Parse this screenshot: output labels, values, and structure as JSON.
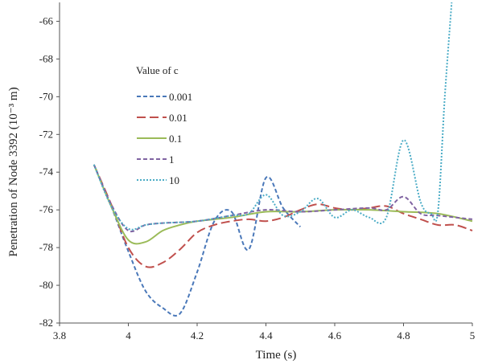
{
  "chart_data": {
    "type": "line",
    "xlabel": "Time (s)",
    "ylabel": "Penetration of Node 3392 (10⁻³ m)",
    "xlim": [
      3.8,
      5.0
    ],
    "ylim": [
      -82,
      -65
    ],
    "x_ticks": [
      "3.8",
      "4",
      "4.2",
      "4.4",
      "4.6",
      "4.8",
      "5"
    ],
    "y_ticks": [
      "-66",
      "-68",
      "-70",
      "-72",
      "-74",
      "-76",
      "-78",
      "-80",
      "-82"
    ],
    "grid": false,
    "legend_title": "Value of c",
    "legend_position": "upper-left",
    "series": [
      {
        "name": "0.001",
        "color": "#4a78b9",
        "dash": "dashed",
        "x": [
          3.9,
          3.95,
          4.0,
          4.05,
          4.1,
          4.15,
          4.2,
          4.25,
          4.3,
          4.35,
          4.4,
          4.45,
          4.5
        ],
        "y": [
          -73.6,
          -75.8,
          -78.2,
          -80.3,
          -81.2,
          -81.5,
          -79.3,
          -76.6,
          -76.1,
          -78.1,
          -74.3,
          -75.9,
          -76.9
        ]
      },
      {
        "name": "0.01",
        "color": "#c0504d",
        "dash": "long-dashed",
        "x": [
          3.9,
          3.95,
          4.0,
          4.05,
          4.1,
          4.15,
          4.2,
          4.25,
          4.3,
          4.35,
          4.4,
          4.45,
          4.5,
          4.55,
          4.6,
          4.65,
          4.7,
          4.75,
          4.8,
          4.85,
          4.9,
          4.95,
          5.0
        ],
        "y": [
          -73.6,
          -75.7,
          -78.0,
          -79.0,
          -78.8,
          -78.1,
          -77.2,
          -76.8,
          -76.6,
          -76.5,
          -76.6,
          -76.4,
          -76.0,
          -75.7,
          -75.9,
          -76.0,
          -75.9,
          -75.8,
          -76.2,
          -76.5,
          -76.8,
          -76.8,
          -77.1
        ]
      },
      {
        "name": "0.1",
        "color": "#9bbb59",
        "dash": "solid",
        "x": [
          3.9,
          3.95,
          4.0,
          4.05,
          4.1,
          4.15,
          4.2,
          4.3,
          4.4,
          4.5,
          4.6,
          4.7,
          4.8,
          4.9,
          5.0
        ],
        "y": [
          -73.6,
          -75.8,
          -77.6,
          -77.7,
          -77.1,
          -76.8,
          -76.6,
          -76.4,
          -76.1,
          -76.1,
          -76.0,
          -76.0,
          -76.1,
          -76.2,
          -76.6
        ]
      },
      {
        "name": "1",
        "color": "#8064a2",
        "dash": "dashed",
        "x": [
          3.9,
          3.95,
          4.0,
          4.05,
          4.1,
          4.2,
          4.3,
          4.4,
          4.5,
          4.6,
          4.7,
          4.75,
          4.8,
          4.85,
          4.9,
          5.0
        ],
        "y": [
          -73.6,
          -75.7,
          -77.1,
          -76.8,
          -76.7,
          -76.6,
          -76.3,
          -76.0,
          -76.1,
          -76.0,
          -75.9,
          -76.0,
          -75.3,
          -76.2,
          -76.3,
          -76.5
        ]
      },
      {
        "name": "10",
        "color": "#4bacc6",
        "dash": "dotted",
        "x": [
          3.9,
          3.95,
          4.0,
          4.05,
          4.1,
          4.2,
          4.3,
          4.35,
          4.4,
          4.45,
          4.5,
          4.55,
          4.6,
          4.65,
          4.7,
          4.75,
          4.8,
          4.85,
          4.88,
          4.9,
          4.92,
          4.94
        ],
        "y": [
          -73.6,
          -75.8,
          -77.0,
          -76.8,
          -76.7,
          -76.6,
          -76.3,
          -76.2,
          -75.2,
          -76.3,
          -76.1,
          -75.4,
          -76.4,
          -76.0,
          -76.4,
          -76.4,
          -72.3,
          -75.6,
          -76.2,
          -76.1,
          -70.0,
          -65.0
        ]
      }
    ]
  }
}
